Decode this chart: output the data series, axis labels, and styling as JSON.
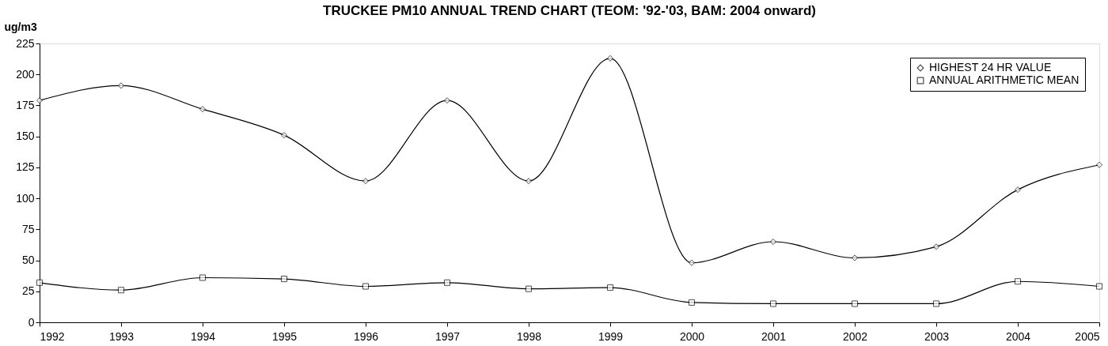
{
  "chart_data": {
    "type": "line",
    "title": "TRUCKEE PM10 ANNUAL TREND CHART (TEOM: '92-'03, BAM: 2004 onward)",
    "ylabel": "ug/m3",
    "x": [
      1992,
      1993,
      1994,
      1995,
      1996,
      1997,
      1998,
      1999,
      2000,
      2001,
      2002,
      2003,
      2004,
      2005
    ],
    "series": [
      {
        "name": "HIGHEST 24 HR VALUE",
        "color": "#000000",
        "marker": "diamond",
        "values": [
          179,
          191,
          172,
          151,
          114,
          179,
          114,
          213,
          48,
          65,
          52,
          61,
          107,
          127
        ]
      },
      {
        "name": "ANNUAL ARITHMETIC MEAN",
        "color": "#000000",
        "marker": "square",
        "values": [
          32,
          26,
          36,
          35,
          29,
          32,
          27,
          28,
          16,
          15,
          15,
          15,
          33,
          29
        ]
      }
    ],
    "xlim": [
      1992,
      2005
    ],
    "xticks": [
      1992,
      1993,
      1994,
      1995,
      1996,
      1997,
      1998,
      1999,
      2000,
      2001,
      2002,
      2003,
      2004,
      2005
    ],
    "ylim": [
      0,
      225
    ],
    "yticks": [
      0,
      25,
      50,
      75,
      100,
      125,
      150,
      175,
      200,
      225
    ],
    "grid": false,
    "legend": "top right",
    "line_style": "solid"
  }
}
